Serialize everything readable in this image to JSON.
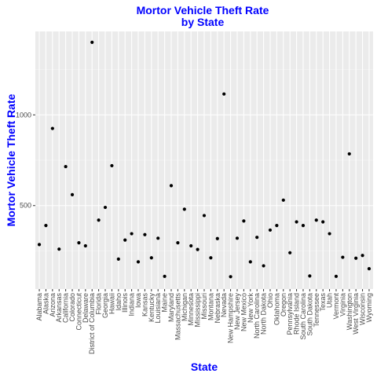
{
  "chart_data": {
    "type": "scatter",
    "title": "Mortor Vehicle Theft Rate",
    "subtitle": "by State",
    "xlabel": "State",
    "ylabel": "Mortor Vehicle Theft Rate",
    "ylim": [
      40,
      1460
    ],
    "yticks": [
      500,
      1000
    ],
    "grid": true,
    "colors": {
      "title": "#0000ff",
      "panel": "#ebebeb",
      "point": "#000000"
    },
    "points": [
      {
        "state": "Alabama",
        "value": 285
      },
      {
        "state": "Alaska",
        "value": 390
      },
      {
        "state": "Arizona",
        "value": 925
      },
      {
        "state": "Arkansas",
        "value": 260
      },
      {
        "state": "California",
        "value": 715
      },
      {
        "state": "Colorado",
        "value": 560
      },
      {
        "state": "Connecticut",
        "value": 295
      },
      {
        "state": "Delaware",
        "value": 278
      },
      {
        "state": "District of Columbia",
        "value": 1400
      },
      {
        "state": "Florida",
        "value": 420
      },
      {
        "state": "Georgia",
        "value": 490
      },
      {
        "state": "Hawaii",
        "value": 720
      },
      {
        "state": "Idaho",
        "value": 205
      },
      {
        "state": "Illinois",
        "value": 310
      },
      {
        "state": "Indiana",
        "value": 345
      },
      {
        "state": "Iowa",
        "value": 190
      },
      {
        "state": "Kansas",
        "value": 340
      },
      {
        "state": "Kentucky",
        "value": 212
      },
      {
        "state": "Louisiana",
        "value": 320
      },
      {
        "state": "Maine",
        "value": 110
      },
      {
        "state": "Maryland",
        "value": 610
      },
      {
        "state": "Massachusetts",
        "value": 295
      },
      {
        "state": "Michigan",
        "value": 480
      },
      {
        "state": "Minnesota",
        "value": 278
      },
      {
        "state": "Mississippi",
        "value": 258
      },
      {
        "state": "Missouri",
        "value": 445
      },
      {
        "state": "Montana",
        "value": 212
      },
      {
        "state": "Nebraska",
        "value": 318
      },
      {
        "state": "Nevada",
        "value": 1115
      },
      {
        "state": "New Hampshire",
        "value": 108
      },
      {
        "state": "New Jersey",
        "value": 320
      },
      {
        "state": "New Mexico",
        "value": 415
      },
      {
        "state": "New York",
        "value": 190
      },
      {
        "state": "North Carolina",
        "value": 325
      },
      {
        "state": "North Dakota",
        "value": 168
      },
      {
        "state": "Ohio",
        "value": 365
      },
      {
        "state": "Oklahoma",
        "value": 390
      },
      {
        "state": "Oregon",
        "value": 530
      },
      {
        "state": "Pennsylvania",
        "value": 240
      },
      {
        "state": "Rhode Island",
        "value": 410
      },
      {
        "state": "South Carolina",
        "value": 390
      },
      {
        "state": "South Dakota",
        "value": 112
      },
      {
        "state": "Tennessee",
        "value": 420
      },
      {
        "state": "Texas",
        "value": 410
      },
      {
        "state": "Utah",
        "value": 345
      },
      {
        "state": "Vermont",
        "value": 110
      },
      {
        "state": "Virginia",
        "value": 215
      },
      {
        "state": "Washington",
        "value": 785
      },
      {
        "state": "West Virginia",
        "value": 210
      },
      {
        "state": "Wisconsin",
        "value": 225
      },
      {
        "state": "Wyoming",
        "value": 152
      }
    ]
  }
}
